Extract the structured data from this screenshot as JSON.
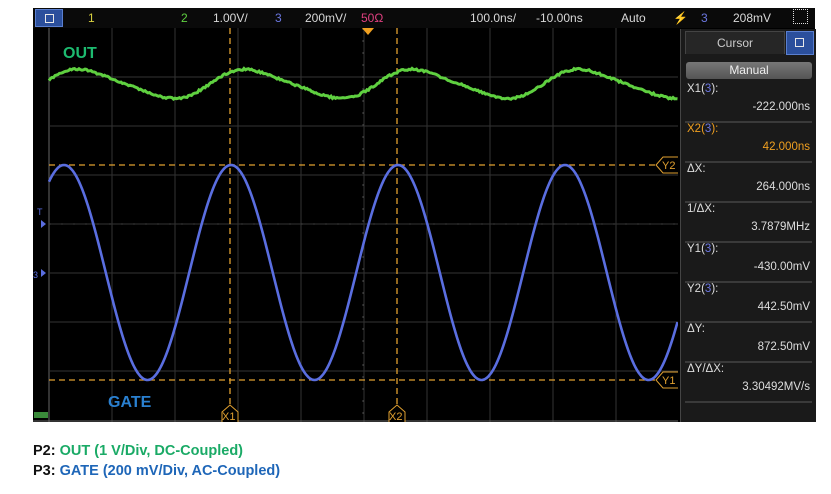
{
  "topbar": {
    "ch1": "1",
    "ch2": "2",
    "ch2_scale": "1.00V/",
    "ch3": "3",
    "ch3_scale": "200mV/",
    "ch3_impedance": "50Ω",
    "timebase": "100.0ns/",
    "delay": "-10.00ns",
    "trigger_mode": "Auto",
    "trigger_source": "3",
    "trigger_level": "208mV"
  },
  "screen": {
    "out_label": "OUT",
    "gate_label": "GATE",
    "trigger_marker": "T",
    "ch3_marker": "3",
    "cursor_x1": "X1",
    "cursor_x2": "X2",
    "cursor_y1": "Y1",
    "cursor_y2": "Y2"
  },
  "panel": {
    "title": "Cursor",
    "mode": "Manual",
    "rows": [
      {
        "label": "X1(",
        "src": "3",
        "close": "):",
        "value": "-222.000ns"
      },
      {
        "label": "X2(",
        "src": "3",
        "close": "):",
        "value": "42.000ns"
      },
      {
        "label": "ΔX:",
        "src": "",
        "close": "",
        "value": "264.000ns"
      },
      {
        "label": "1/ΔX:",
        "src": "",
        "close": "",
        "value": "3.7879MHz"
      },
      {
        "label": "Y1(",
        "src": "3",
        "close": "):",
        "value": "-430.00mV"
      },
      {
        "label": "Y2(",
        "src": "3",
        "close": "):",
        "value": "442.50mV"
      },
      {
        "label": "ΔY:",
        "src": "",
        "close": "",
        "value": "872.50mV"
      },
      {
        "label": "ΔY/ΔX:",
        "src": "",
        "close": "",
        "value": "3.30492MV/s"
      }
    ]
  },
  "captions": {
    "p2_prefix": "P2:",
    "p2_text": "OUT (1 V/Div, DC-Coupled)",
    "p3_prefix": "P3:",
    "p3_text": "GATE (200 mV/Div, AC-Coupled)"
  },
  "colors": {
    "out": "#5fd040",
    "gate": "#5a6ee0",
    "cursor": "#e0a030",
    "accent": "#2b4f9c"
  }
}
